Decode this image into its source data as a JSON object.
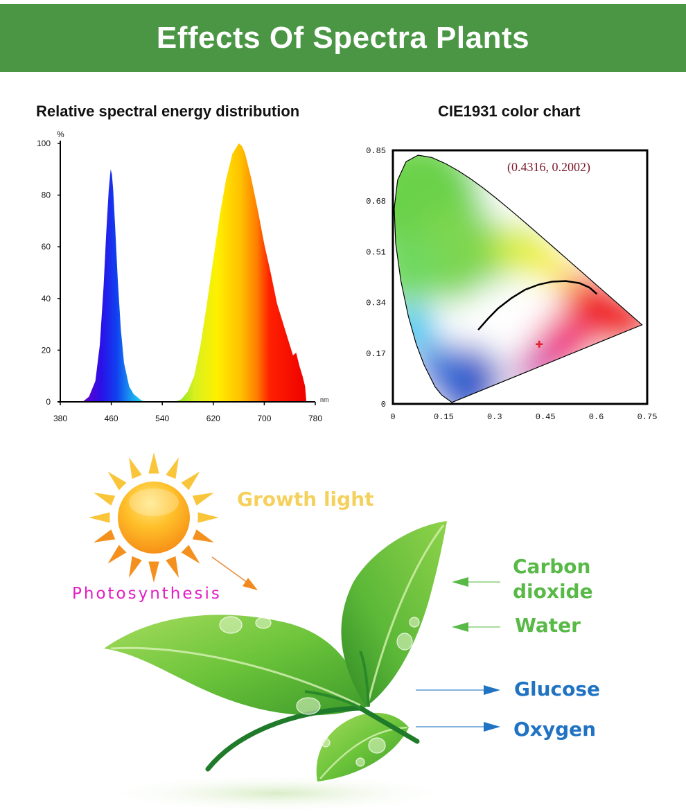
{
  "banner": {
    "title": "Effects Of Spectra Plants",
    "background": "#4a9645"
  },
  "chart_data": [
    {
      "type": "area",
      "title": "Relative spectral energy distribution",
      "xlabel": "nm",
      "ylabel": "%",
      "xlim": [
        380,
        780
      ],
      "ylim": [
        0,
        100
      ],
      "x_ticks": [
        "380",
        "460",
        "540",
        "620",
        "700",
        "780"
      ],
      "y_ticks": [
        "0",
        "20",
        "40",
        "60",
        "80",
        "100"
      ],
      "grid": false,
      "series": [
        {
          "name": "Blue peak",
          "x": [
            415,
            425,
            435,
            442,
            448,
            452,
            456,
            459,
            461,
            463,
            466,
            470,
            475,
            480,
            488,
            495,
            505,
            512
          ],
          "y": [
            0,
            2,
            8,
            22,
            45,
            65,
            82,
            90,
            88,
            82,
            68,
            48,
            28,
            15,
            6,
            3,
            1,
            0
          ]
        },
        {
          "name": "Red peak",
          "x": [
            560,
            570,
            580,
            590,
            600,
            610,
            620,
            630,
            640,
            650,
            655,
            660,
            665,
            670,
            680,
            690,
            700,
            710,
            720,
            730,
            740,
            745,
            750,
            755,
            760,
            764,
            766
          ],
          "y": [
            0,
            1,
            4,
            10,
            22,
            38,
            55,
            72,
            86,
            96,
            98,
            100,
            99,
            96,
            86,
            74,
            61,
            50,
            38,
            30,
            22,
            18,
            19,
            14,
            10,
            6,
            0
          ]
        }
      ]
    },
    {
      "type": "scatter",
      "title": "CIE1931 color chart",
      "xlim": [
        0,
        0.75
      ],
      "ylim": [
        0,
        0.85
      ],
      "x_ticks": [
        "0",
        "0.15",
        "0.3",
        "0.45",
        "0.6",
        "0.75"
      ],
      "y_ticks": [
        "0",
        "0.17",
        "0.34",
        "0.51",
        "0.68",
        "0.85"
      ],
      "grid": false,
      "point": {
        "x": 0.4316,
        "y": 0.2002,
        "label": "(0.4316, 0.2002)",
        "color": "#e0202a"
      },
      "planckian_locus": {
        "x": [
          0.253,
          0.28,
          0.31,
          0.35,
          0.39,
          0.43,
          0.47,
          0.51,
          0.55,
          0.58,
          0.6
        ],
        "y": [
          0.25,
          0.285,
          0.32,
          0.355,
          0.383,
          0.4,
          0.41,
          0.412,
          0.405,
          0.39,
          0.37
        ]
      },
      "spectral_locus": {
        "x": [
          0.1741,
          0.144,
          0.1241,
          0.0913,
          0.0687,
          0.0454,
          0.0235,
          0.0082,
          0.0039,
          0.0139,
          0.0389,
          0.0743,
          0.1142,
          0.1547,
          0.1929,
          0.2296,
          0.2658,
          0.3016,
          0.3373,
          0.3731,
          0.4087,
          0.4441,
          0.4788,
          0.5125,
          0.5448,
          0.5752,
          0.6029,
          0.627,
          0.6482,
          0.6658,
          0.6801,
          0.7347
        ],
        "y": [
          0.005,
          0.0297,
          0.0578,
          0.1327,
          0.2007,
          0.295,
          0.4127,
          0.5384,
          0.6548,
          0.7502,
          0.812,
          0.8338,
          0.8262,
          0.8059,
          0.7816,
          0.7543,
          0.7243,
          0.6923,
          0.6589,
          0.6245,
          0.5896,
          0.5547,
          0.5202,
          0.4866,
          0.4544,
          0.4242,
          0.3965,
          0.3725,
          0.3514,
          0.334,
          0.3197,
          0.2653
        ]
      }
    }
  ],
  "diagram": {
    "growth_light": "Growth light",
    "photosynthesis": "Photosynthesis",
    "inputs": [
      {
        "label": "Carbon\ndioxide",
        "color": "#58b947"
      },
      {
        "label": "Water",
        "color": "#58b947"
      }
    ],
    "outputs": [
      {
        "label": "Glucose",
        "color": "#1f73c2"
      },
      {
        "label": "Oxygen",
        "color": "#1f73c2"
      }
    ],
    "colors": {
      "growth_light": "#f5d15c",
      "photosynthesis": "#e21cc4"
    }
  }
}
